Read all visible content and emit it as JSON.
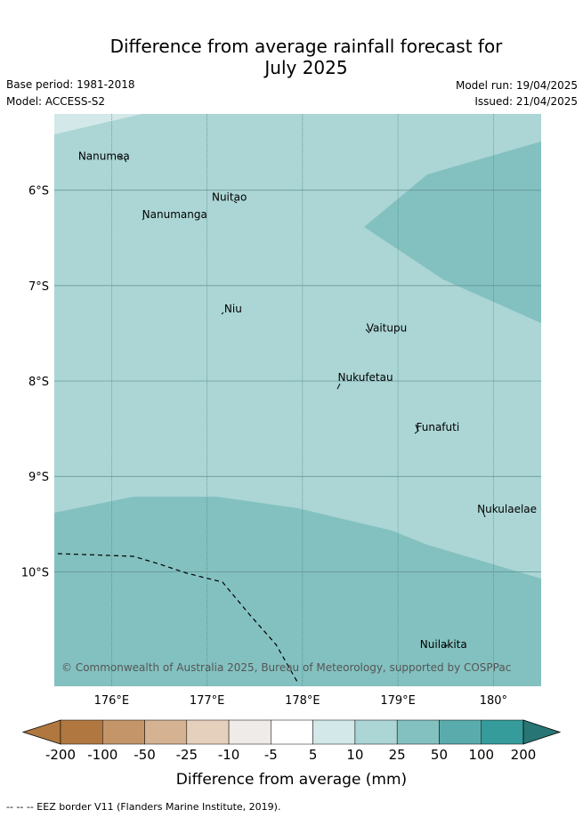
{
  "title_line1": "Difference from average rainfall forecast for",
  "title_line2": "July 2025",
  "base_period": "Base period: 1981-2018",
  "model": "Model: ACCESS-S2",
  "model_run": "Model run: 19/04/2025",
  "issued": "Issued: 21/04/2025",
  "copyright": "© Commonwealth of Australia 2025, Bureau of Meteorology, supported by COSPPac",
  "map": {
    "lon_range": [
      175.4,
      180.5
    ],
    "lat_range": [
      -11.2,
      -5.2
    ],
    "lon_ticks": [
      {
        "v": 176,
        "label": "176°E"
      },
      {
        "v": 177,
        "label": "177°E"
      },
      {
        "v": 178,
        "label": "178°E"
      },
      {
        "v": 179,
        "label": "179°E"
      },
      {
        "v": 180,
        "label": "180°"
      }
    ],
    "lat_ticks": [
      {
        "v": -6,
        "label": "6°S"
      },
      {
        "v": -7,
        "label": "7°S"
      },
      {
        "v": -8,
        "label": "8°S"
      },
      {
        "v": -9,
        "label": "9°S"
      },
      {
        "v": -10,
        "label": "10°S"
      }
    ],
    "places": [
      {
        "name": "Nanumea",
        "lon": 175.65,
        "lat": -5.68
      },
      {
        "name": "Nuitao",
        "lon": 177.05,
        "lat": -6.11
      },
      {
        "name": "Nanumanga",
        "lon": 176.32,
        "lat": -6.29
      },
      {
        "name": "Niu",
        "lon": 177.18,
        "lat": -7.28
      },
      {
        "name": "Vaitupu",
        "lon": 178.67,
        "lat": -7.48
      },
      {
        "name": "Nukufetau",
        "lon": 178.37,
        "lat": -8.0
      },
      {
        "name": "Funafuti",
        "lon": 179.19,
        "lat": -8.52
      },
      {
        "name": "Nukulaelae",
        "lon": 179.83,
        "lat": -9.38
      },
      {
        "name": "Nuilakita",
        "lon": 179.23,
        "lat": -10.8
      }
    ],
    "colors": {
      "base": "#acd5d5",
      "moist": "#83c1c0",
      "light": "#d3e8e8"
    }
  },
  "colorbar": {
    "ticks": [
      "-200",
      "-100",
      "-50",
      "-25",
      "-10",
      "-5",
      "5",
      "10",
      "25",
      "50",
      "100",
      "200"
    ],
    "colors": [
      "#b07840",
      "#b07840",
      "#c39569",
      "#d4b292",
      "#e5d0bd",
      "#eeebe8",
      "#ffffff",
      "#d3e8e8",
      "#acd5d5",
      "#83c1c0",
      "#5aacac",
      "#359c9b",
      "#287575"
    ],
    "label": "Difference from average (mm)"
  },
  "footer": "--  --  -- EEZ border V11 (Flanders Marine Institute, 2019)."
}
